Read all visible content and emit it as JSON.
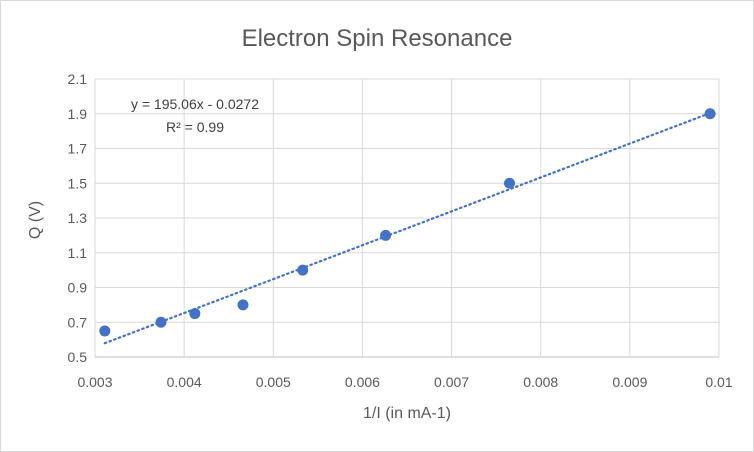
{
  "chart_data": {
    "type": "scatter",
    "title": "Electron Spin Resonance",
    "xlabel": "1/I (in mA-1)",
    "ylabel": "Q (V)",
    "xlim": [
      0.003,
      0.01
    ],
    "ylim": [
      0.5,
      2.1
    ],
    "x_ticks": [
      "0.003",
      "0.004",
      "0.005",
      "0.006",
      "0.007",
      "0.008",
      "0.009",
      "0.01"
    ],
    "y_ticks": [
      "0.5",
      "0.7",
      "0.9",
      "1.1",
      "1.3",
      "1.5",
      "1.7",
      "1.9",
      "2.1"
    ],
    "grid": true,
    "legend": "none",
    "points": [
      {
        "x": 0.00311,
        "y": 0.65
      },
      {
        "x": 0.00374,
        "y": 0.7
      },
      {
        "x": 0.00412,
        "y": 0.75
      },
      {
        "x": 0.00466,
        "y": 0.8
      },
      {
        "x": 0.00533,
        "y": 1.0
      },
      {
        "x": 0.00626,
        "y": 1.2
      },
      {
        "x": 0.00765,
        "y": 1.5
      },
      {
        "x": 0.0099,
        "y": 1.9
      }
    ],
    "trendline": {
      "type": "linear",
      "slope": 195.06,
      "intercept": -0.0272,
      "x_range": [
        0.00311,
        0.0099
      ],
      "style": "dotted"
    },
    "annotations": {
      "equation": "y = 195.06x - 0.0272",
      "r_squared": "R² = 0.99"
    },
    "colors": {
      "marker": "#4472c4",
      "trendline": "#4472c4",
      "grid": "#d9d9d9",
      "text": "#595959"
    }
  }
}
